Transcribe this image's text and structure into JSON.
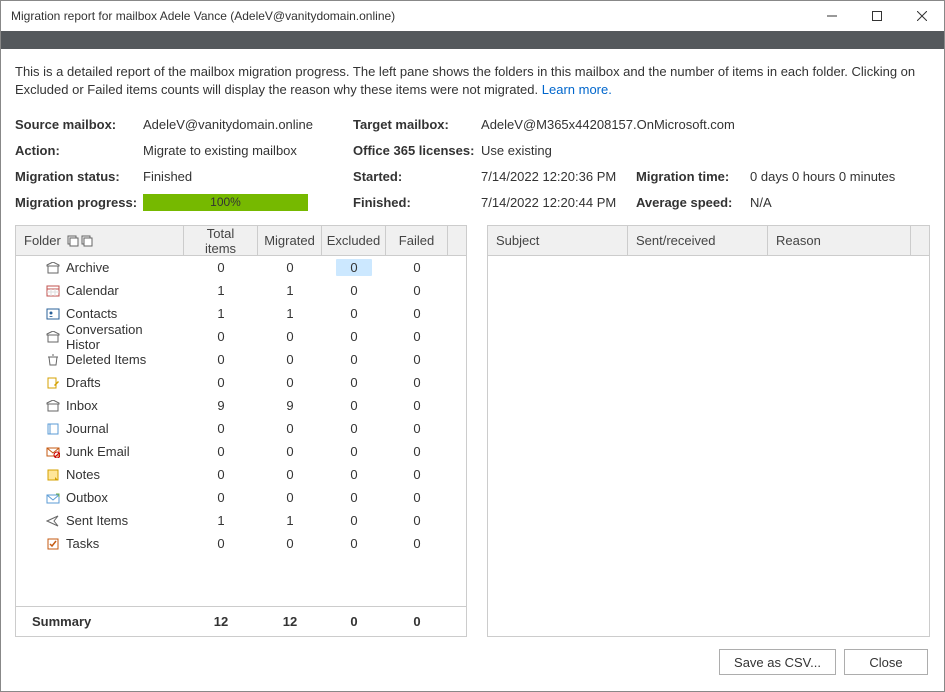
{
  "window": {
    "title": "Migration report for mailbox Adele Vance (AdeleV@vanitydomain.online)"
  },
  "description": {
    "text": "This is a detailed report of the mailbox migration progress. The left pane shows the folders in this mailbox and the number of items in each folder. Clicking on Excluded or Failed items counts will display the reason why these items were not migrated. ",
    "link": "Learn more."
  },
  "info": {
    "left": {
      "source_label": "Source mailbox:",
      "source_value": "AdeleV@vanitydomain.online",
      "action_label": "Action:",
      "action_value": "Migrate to existing mailbox",
      "status_label": "Migration status:",
      "status_value": "Finished",
      "progress_label": "Migration progress:",
      "progress_value": "100%"
    },
    "right": {
      "target_label": "Target mailbox:",
      "target_value": "AdeleV@M365x44208157.OnMicrosoft.com",
      "licenses_label": "Office 365 licenses:",
      "licenses_value": "Use existing",
      "started_label": "Started:",
      "started_value": "7/14/2022 12:20:36 PM",
      "migtime_label": "Migration time:",
      "migtime_value": "0 days 0 hours 0 minutes",
      "finished_label": "Finished:",
      "finished_value": "7/14/2022 12:20:44 PM",
      "avgspeed_label": "Average speed:",
      "avgspeed_value": "N/A"
    }
  },
  "folders": {
    "headers": {
      "folder": "Folder",
      "total": "Total items",
      "migrated": "Migrated",
      "excluded": "Excluded",
      "failed": "Failed"
    },
    "rows": [
      {
        "icon": "archive",
        "name": "Archive",
        "total": "0",
        "migrated": "0",
        "excluded": "0",
        "failed": "0",
        "selected": true
      },
      {
        "icon": "calendar",
        "name": "Calendar",
        "total": "1",
        "migrated": "1",
        "excluded": "0",
        "failed": "0"
      },
      {
        "icon": "contacts",
        "name": "Contacts",
        "total": "1",
        "migrated": "1",
        "excluded": "0",
        "failed": "0"
      },
      {
        "icon": "archive",
        "name": "Conversation Histor",
        "total": "0",
        "migrated": "0",
        "excluded": "0",
        "failed": "0"
      },
      {
        "icon": "deleted",
        "name": "Deleted Items",
        "total": "0",
        "migrated": "0",
        "excluded": "0",
        "failed": "0"
      },
      {
        "icon": "drafts",
        "name": "Drafts",
        "total": "0",
        "migrated": "0",
        "excluded": "0",
        "failed": "0"
      },
      {
        "icon": "inbox",
        "name": "Inbox",
        "total": "9",
        "migrated": "9",
        "excluded": "0",
        "failed": "0"
      },
      {
        "icon": "journal",
        "name": "Journal",
        "total": "0",
        "migrated": "0",
        "excluded": "0",
        "failed": "0"
      },
      {
        "icon": "junk",
        "name": "Junk Email",
        "total": "0",
        "migrated": "0",
        "excluded": "0",
        "failed": "0"
      },
      {
        "icon": "notes",
        "name": "Notes",
        "total": "0",
        "migrated": "0",
        "excluded": "0",
        "failed": "0"
      },
      {
        "icon": "outbox",
        "name": "Outbox",
        "total": "0",
        "migrated": "0",
        "excluded": "0",
        "failed": "0"
      },
      {
        "icon": "sent",
        "name": "Sent Items",
        "total": "1",
        "migrated": "1",
        "excluded": "0",
        "failed": "0"
      },
      {
        "icon": "tasks",
        "name": "Tasks",
        "total": "0",
        "migrated": "0",
        "excluded": "0",
        "failed": "0"
      }
    ],
    "summary": {
      "label": "Summary",
      "total": "12",
      "migrated": "12",
      "excluded": "0",
      "failed": "0"
    }
  },
  "details": {
    "headers": {
      "subject": "Subject",
      "sent": "Sent/received",
      "reason": "Reason"
    }
  },
  "buttons": {
    "save": "Save as CSV...",
    "close": "Close"
  },
  "colors": {
    "ribbon": "#54585c",
    "progress": "#76b900",
    "selected": "#cce8ff",
    "header_bg": "#f0f0f0",
    "border": "#cccccc",
    "link": "#0066cc"
  }
}
